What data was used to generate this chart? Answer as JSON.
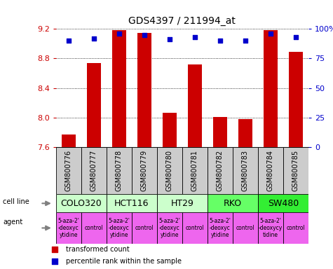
{
  "title": "GDS4397 / 211994_at",
  "samples": [
    "GSM800776",
    "GSM800777",
    "GSM800778",
    "GSM800779",
    "GSM800780",
    "GSM800781",
    "GSM800782",
    "GSM800783",
    "GSM800784",
    "GSM800785"
  ],
  "bar_values": [
    7.77,
    8.74,
    9.18,
    9.14,
    8.06,
    8.72,
    8.01,
    7.98,
    9.18,
    8.89
  ],
  "dot_values": [
    90,
    92,
    96,
    95,
    91,
    93,
    90,
    90,
    96,
    93
  ],
  "ylim_left": [
    7.6,
    9.2
  ],
  "ylim_right": [
    0,
    100
  ],
  "yticks_left": [
    7.6,
    8.0,
    8.4,
    8.8,
    9.2
  ],
  "yticks_right": [
    0,
    25,
    50,
    75,
    100
  ],
  "bar_color": "#cc0000",
  "dot_color": "#0000cc",
  "cell_lines": [
    {
      "label": "COLO320",
      "start": 0,
      "end": 2,
      "color": "#ccffcc"
    },
    {
      "label": "HCT116",
      "start": 2,
      "end": 4,
      "color": "#ccffcc"
    },
    {
      "label": "HT29",
      "start": 4,
      "end": 6,
      "color": "#ccffcc"
    },
    {
      "label": "RKO",
      "start": 6,
      "end": 8,
      "color": "#66ff66"
    },
    {
      "label": "SW480",
      "start": 8,
      "end": 10,
      "color": "#33ee33"
    }
  ],
  "agents": [
    {
      "label": "5-aza-2'\n-deoxyc\nytidine",
      "color": "#ee66ee"
    },
    {
      "label": "control",
      "color": "#ee66ee"
    },
    {
      "label": "5-aza-2'\n-deoxyc\nytidine",
      "color": "#ee66ee"
    },
    {
      "label": "control",
      "color": "#ee66ee"
    },
    {
      "label": "5-aza-2'\n-deoxyc\nytidine",
      "color": "#ee66ee"
    },
    {
      "label": "control",
      "color": "#ee66ee"
    },
    {
      "label": "5-aza-2'\n-deoxyc\nytidine",
      "color": "#ee66ee"
    },
    {
      "label": "control",
      "color": "#ee66ee"
    },
    {
      "label": "5-aza-2'\n-deoxycy\ntidine",
      "color": "#ee66ee"
    },
    {
      "label": "control",
      "color": "#ee66ee"
    }
  ],
  "legend_bar_label": "transformed count",
  "legend_dot_label": "percentile rank within the sample",
  "sample_bg": "#cccccc",
  "left_label_color": "#cc0000",
  "right_label_color": "#0000cc",
  "left_label_text": "cell line",
  "right_label_text": "agent",
  "sample_fontsize": 7,
  "cell_label_fontsize": 9,
  "agent_label_fontsize": 5.5,
  "legend_fontsize": 7,
  "title_fontsize": 10
}
